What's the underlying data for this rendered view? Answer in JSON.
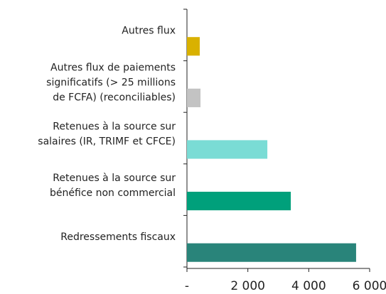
{
  "chart_data": {
    "type": "hbar",
    "categories": [
      "Autres flux",
      "Autres flux de paiements\nsignificatifs (> 25 millions\nde  FCFA) (reconciliables)",
      "Retenues à la source sur\nsalaires (IR, TRIMF et CFCE)",
      "Retenues à la source sur\nbénéfice non commercial",
      "Redressements fiscaux"
    ],
    "values": [
      420,
      445,
      2640,
      3410,
      5555
    ],
    "colors": [
      "#d9b100",
      "#c3c3c3",
      "#7adcd5",
      "#00a07b",
      "#29847a"
    ],
    "xlim": [
      0,
      6000
    ],
    "xticks": [
      {
        "value": 0,
        "label": "-"
      },
      {
        "value": 2000,
        "label": "2 000"
      },
      {
        "value": 4000,
        "label": "4 000"
      },
      {
        "value": 6000,
        "label": "6 000"
      }
    ]
  }
}
